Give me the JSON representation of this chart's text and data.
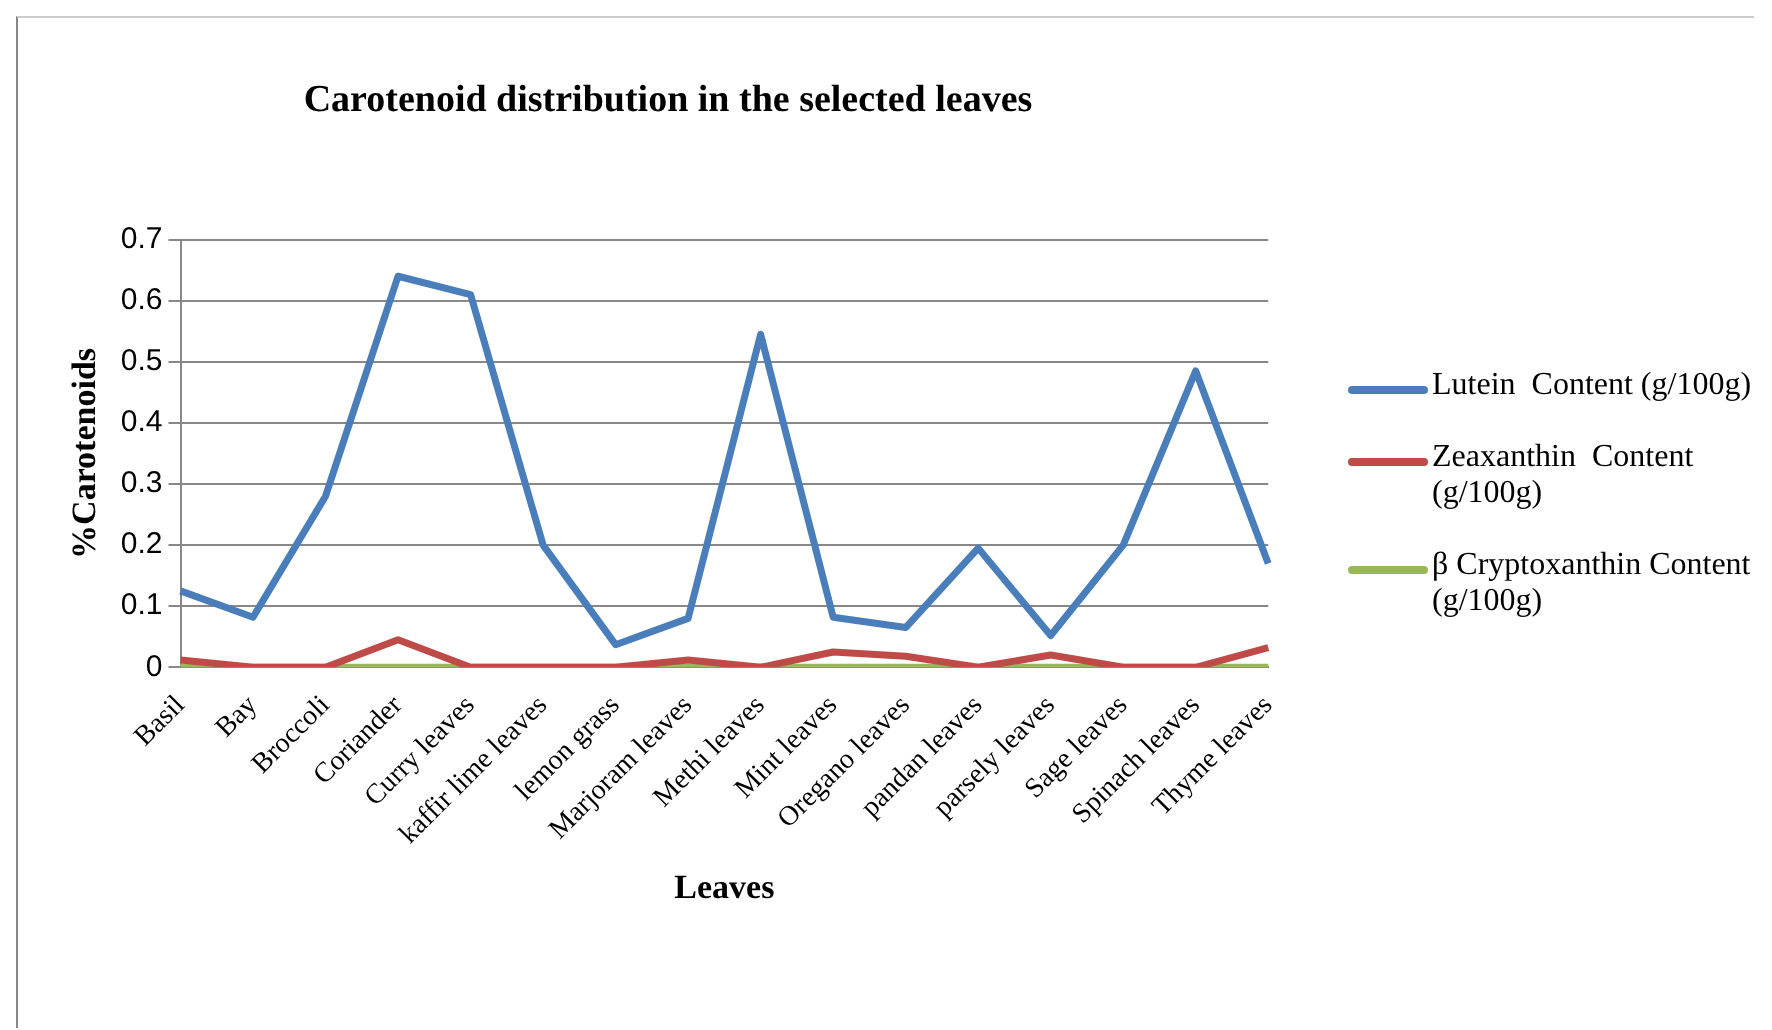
{
  "chart_data": {
    "type": "line",
    "title": "Carotenoid distribution in the selected leaves",
    "xlabel": "Leaves",
    "ylabel": "%Carotenoids",
    "categories": [
      "Basil",
      "Bay",
      "Broccoli",
      "Coriander",
      "Curry leaves",
      "kaffir lime leaves",
      "lemon grass",
      "Marjoram leaves",
      "Methi leaves",
      "Mint leaves",
      "Oregano leaves",
      "pandan leaves",
      "parsely leaves",
      "Sage leaves",
      "Spinach leaves",
      "Thyme leaves"
    ],
    "series": [
      {
        "name": "Lutein  Content (g/100g)",
        "color": "#4a7ebb",
        "values": [
          0.125,
          0.082,
          0.28,
          0.64,
          0.61,
          0.2,
          0.037,
          0.08,
          0.545,
          0.082,
          0.065,
          0.195,
          0.052,
          0.2,
          0.485,
          0.17
        ]
      },
      {
        "name": "Zeaxanthin  Content (g/100g)",
        "color": "#be4b48",
        "values": [
          0.012,
          0,
          0,
          0.045,
          0,
          0,
          0,
          0.012,
          0,
          0.025,
          0.018,
          0,
          0.02,
          0,
          0,
          0.032
        ]
      },
      {
        "name": "β Cryptoxanthin Content (g/100g)",
        "color": "#98b954",
        "values": [
          0,
          0,
          0,
          0,
          0,
          0,
          0,
          0,
          0,
          0,
          0,
          0,
          0,
          0,
          0,
          0
        ]
      }
    ],
    "ylim": [
      0,
      0.7
    ],
    "yticks": [
      0,
      0.1,
      0.2,
      0.3,
      0.4,
      0.5,
      0.6,
      0.7
    ],
    "grid": "y",
    "legend": "right",
    "marker": "none",
    "line_style": "solid"
  }
}
